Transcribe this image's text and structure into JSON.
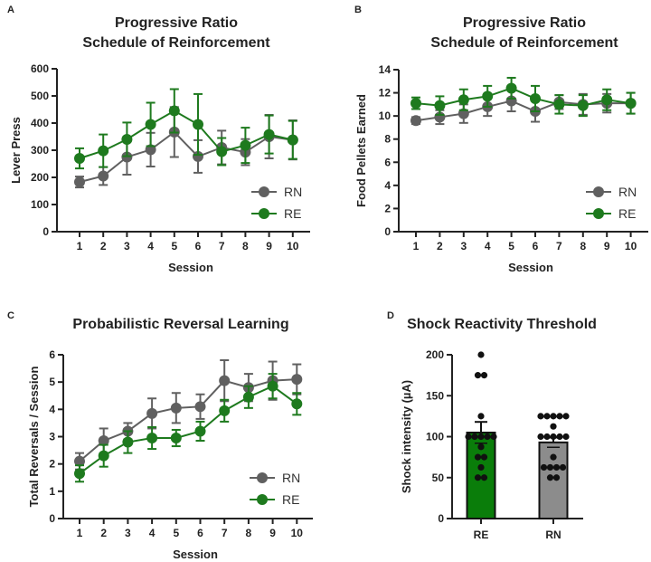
{
  "colors": {
    "RE_line": "#1e7a1e",
    "RN_line": "#606060",
    "RE_bar": "#0a7d0a",
    "RN_bar": "#8c8c8c",
    "axis": "#222222"
  },
  "chart_data": [
    {
      "panel": "A",
      "type": "line",
      "title": [
        "Progressive Ratio",
        "Schedule of Reinforcement"
      ],
      "xlabel": "Session",
      "ylabel": "Lever Press",
      "x": [
        1,
        2,
        3,
        4,
        5,
        6,
        7,
        8,
        9,
        10
      ],
      "ylim": [
        0,
        600
      ],
      "yticks": [
        0,
        100,
        200,
        300,
        400,
        500,
        600
      ],
      "legend": "bottom-right",
      "series": [
        {
          "name": "RN",
          "values": [
            183,
            205,
            275,
            302,
            367,
            277,
            310,
            293,
            350,
            338
          ],
          "errors": [
            20,
            33,
            65,
            62,
            92,
            60,
            62,
            48,
            80,
            72
          ]
        },
        {
          "name": "RE",
          "values": [
            270,
            298,
            340,
            395,
            445,
            395,
            295,
            318,
            358,
            338
          ],
          "errors": [
            37,
            60,
            62,
            80,
            80,
            112,
            50,
            65,
            70,
            70
          ]
        }
      ]
    },
    {
      "panel": "B",
      "type": "line",
      "title": [
        "Progressive Ratio",
        "Schedule of Reinforcement"
      ],
      "xlabel": "Session",
      "ylabel": "Food Pellets Earned",
      "x": [
        1,
        2,
        3,
        4,
        5,
        6,
        7,
        8,
        9,
        10
      ],
      "ylim": [
        0,
        14
      ],
      "yticks": [
        0,
        2,
        4,
        6,
        8,
        10,
        12,
        14
      ],
      "legend": "bottom-right",
      "series": [
        {
          "name": "RN",
          "values": [
            9.6,
            9.9,
            10.2,
            10.8,
            11.3,
            10.4,
            11.2,
            11.0,
            11.1,
            11.1
          ],
          "errors": [
            0.3,
            0.6,
            0.8,
            0.8,
            0.9,
            0.9,
            0.6,
            0.9,
            0.8,
            0.9
          ]
        },
        {
          "name": "RE",
          "values": [
            11.1,
            10.9,
            11.4,
            11.7,
            12.4,
            11.5,
            11.0,
            10.9,
            11.4,
            11.1
          ],
          "errors": [
            0.5,
            0.8,
            0.9,
            0.9,
            0.9,
            1.1,
            0.8,
            0.9,
            0.9,
            0.9
          ]
        }
      ]
    },
    {
      "panel": "C",
      "type": "line",
      "title": [
        "Probabilistic Reversal Learning"
      ],
      "xlabel": "Session",
      "ylabel": "Total Reversals / Session",
      "x": [
        1,
        2,
        3,
        4,
        5,
        6,
        7,
        8,
        9,
        10
      ],
      "ylim": [
        0,
        6
      ],
      "yticks": [
        0,
        1,
        2,
        3,
        4,
        5,
        6
      ],
      "legend": "bottom-right",
      "series": [
        {
          "name": "RN",
          "values": [
            2.1,
            2.85,
            3.2,
            3.85,
            4.05,
            4.1,
            5.05,
            4.8,
            5.05,
            5.1
          ],
          "errors": [
            0.3,
            0.45,
            0.3,
            0.55,
            0.55,
            0.45,
            0.75,
            0.5,
            0.7,
            0.55
          ]
        },
        {
          "name": "RE",
          "values": [
            1.65,
            2.3,
            2.8,
            2.95,
            2.95,
            3.2,
            3.95,
            4.45,
            4.85,
            4.2
          ],
          "errors": [
            0.3,
            0.4,
            0.4,
            0.4,
            0.3,
            0.35,
            0.4,
            0.4,
            0.45,
            0.4
          ]
        }
      ]
    },
    {
      "panel": "D",
      "type": "bar",
      "title": [
        "Shock Reactivity Threshold"
      ],
      "xlabel": "",
      "ylabel": "Shock intensity (µA)",
      "categories": [
        "RE",
        "RN"
      ],
      "ylim": [
        0,
        200
      ],
      "yticks": [
        0,
        50,
        100,
        150,
        200
      ],
      "values": [
        105,
        93
      ],
      "errors": [
        13,
        6
      ],
      "points": [
        [
          200,
          175,
          175,
          125,
          100,
          100,
          100,
          100,
          100,
          87.5,
          75,
          75,
          62.5,
          50,
          50
        ],
        [
          125,
          125,
          125,
          125,
          125,
          112.5,
          100,
          100,
          100,
          100,
          100,
          75,
          62.5,
          62.5,
          62.5,
          62.5,
          50,
          50
        ]
      ]
    }
  ]
}
